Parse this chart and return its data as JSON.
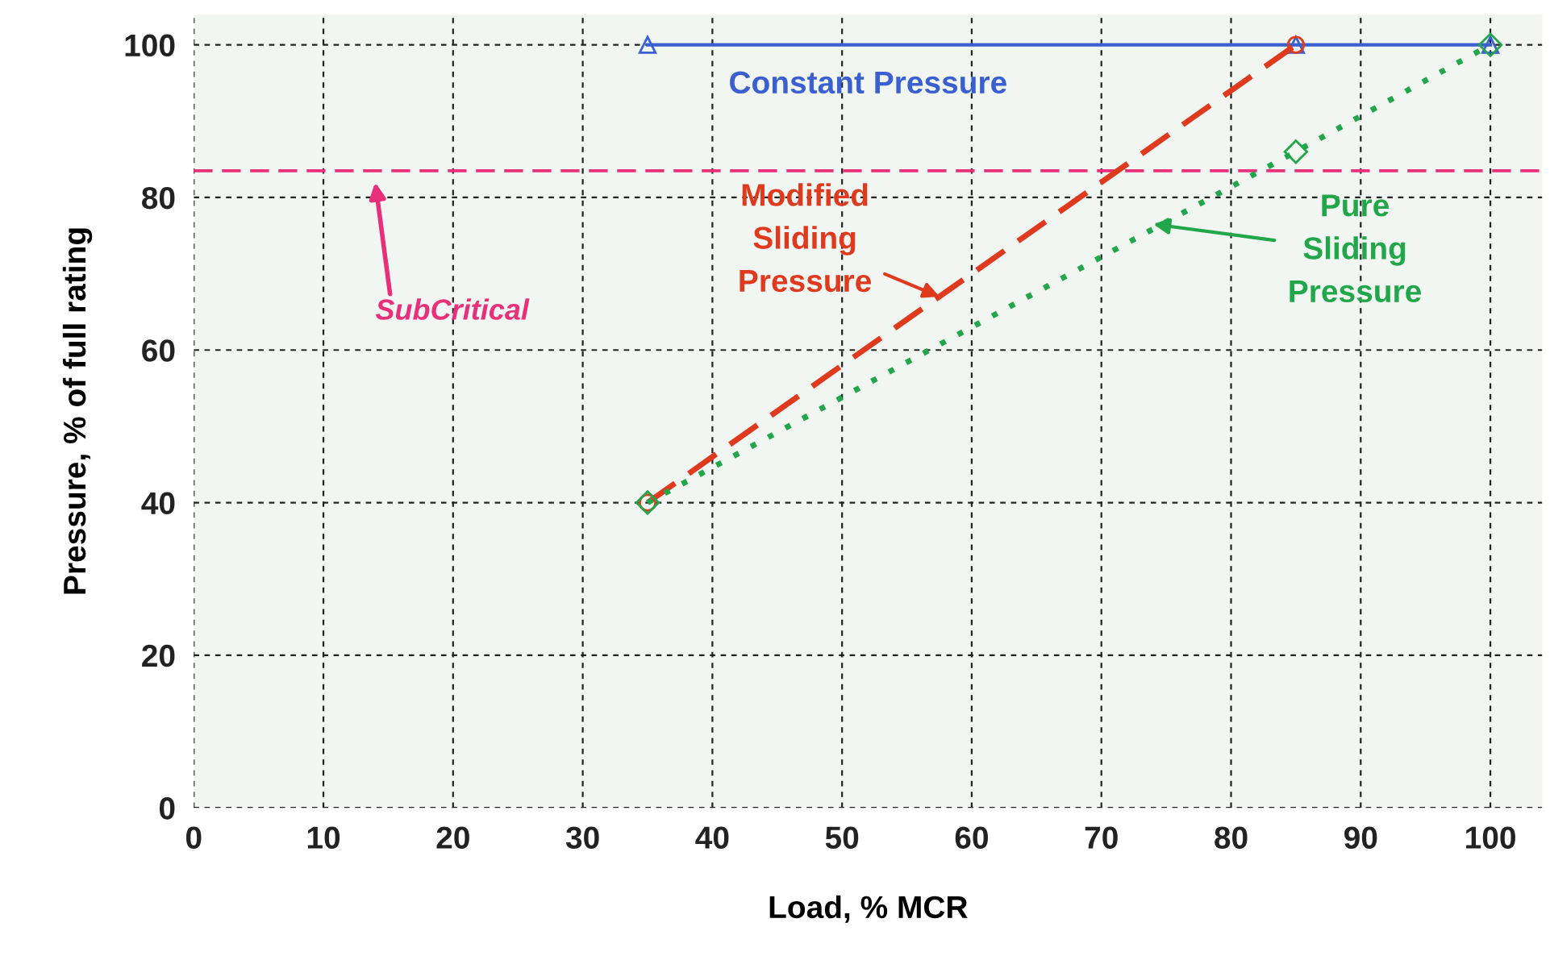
{
  "chart_data": {
    "type": "line",
    "xlabel": "Load, % MCR",
    "ylabel": "Pressure, % of full rating",
    "xlim": [
      0,
      104
    ],
    "ylim": [
      0,
      104
    ],
    "xticks": [
      0,
      10,
      20,
      30,
      40,
      50,
      60,
      70,
      80,
      90,
      100
    ],
    "yticks": [
      0,
      20,
      40,
      60,
      80,
      100
    ],
    "grid": true,
    "series": [
      {
        "color": "#3a5fd0",
        "x": [
          35,
          85,
          100
        ],
        "values": [
          100,
          100,
          100
        ],
        "line_style": "solid",
        "marker": "triangle"
      },
      {
        "color": "#e03a1e",
        "x": [
          35,
          85
        ],
        "values": [
          40,
          100
        ],
        "line_style": "dashed",
        "marker": "circle"
      },
      {
        "color": "#22a64a",
        "x": [
          35,
          85,
          100
        ],
        "values": [
          40,
          86,
          100
        ],
        "line_style": "dotted",
        "marker": "diamond"
      }
    ],
    "ref_lines": [
      {
        "axis": "y",
        "value": 83.5,
        "label": "SubCritical",
        "color": "#e8307a",
        "line_style": "dashed"
      }
    ],
    "annotations": [
      {
        "text": "Constant Pressure",
        "x": 52,
        "y": 100
      },
      {
        "text": "Modified\nSliding\nPressure",
        "x": 57.5,
        "y": 67
      },
      {
        "text": "Pure\nSliding\nPressure",
        "x": 74,
        "y": 76.5
      }
    ]
  }
}
